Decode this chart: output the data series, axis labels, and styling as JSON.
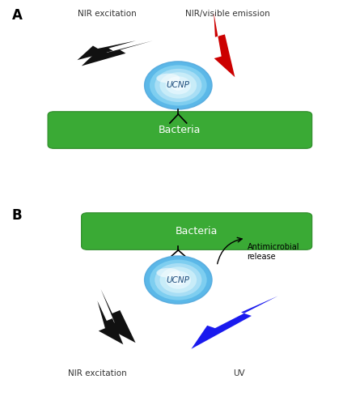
{
  "panel_A_bg": "#fdf9e3",
  "panel_B_bg": "#e4f4fc",
  "bacteria_color": "#3aaa35",
  "bacteria_edge": "#2d8a28",
  "ucnp_color_light": "#b8dff5",
  "ucnp_color_mid": "#7ec8f0",
  "ucnp_color_dark": "#5aaee0",
  "black_bolt_color": "#111111",
  "red_bolt_color": "#cc0000",
  "blue_bolt_color": "#1a1aee",
  "label_A": "A",
  "label_B": "B",
  "nir_excitation_text": "NIR excitation",
  "nir_visible_text": "NIR/visible emission",
  "bacteria_text": "Bacteria",
  "ucnp_text": "UCNP",
  "antimicrobial_text": "Antimicrobial\nrelease",
  "uv_text": "UV",
  "border_color": "#888888"
}
